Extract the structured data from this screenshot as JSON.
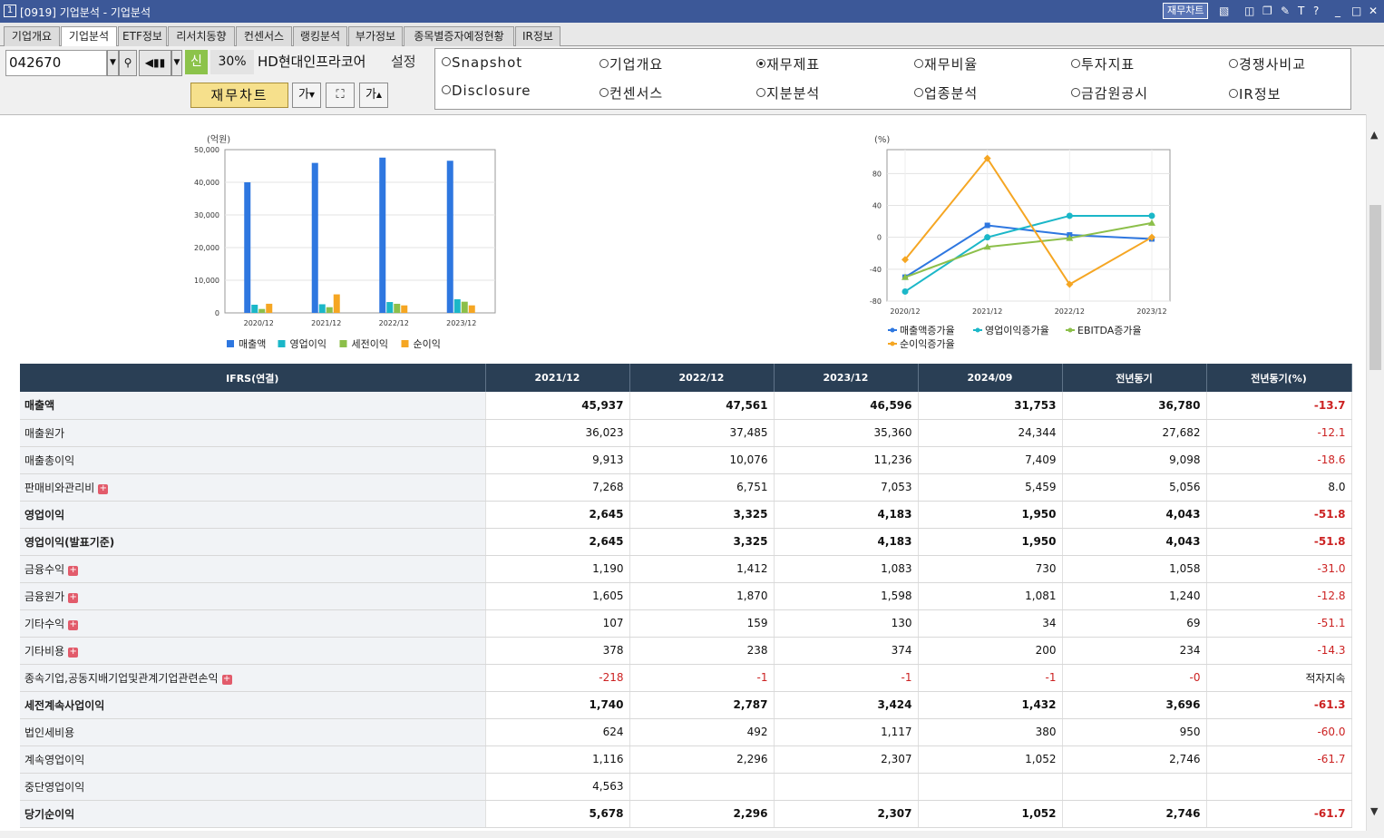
{
  "window": {
    "number": "1",
    "title": "[0919] 기업분석 - 기업분석",
    "chart_button": "재무차트",
    "icons": [
      "chart-icon",
      "layout-icon",
      "copy-icon",
      "pin-icon",
      "font-icon",
      "help-icon",
      "minimize-icon",
      "maximize-icon",
      "close-icon"
    ]
  },
  "tabs": [
    "기업개요",
    "기업분석",
    "ETF정보",
    "리서치동향",
    "컨센서스",
    "랭킹분석",
    "부가정보",
    "종목별증자예정현황",
    "IR정보"
  ],
  "active_tab": "기업분석",
  "toolbar": {
    "code": "042670",
    "shin_label": "신",
    "pct_label": "30%",
    "company_name": "HD현대인프라코어",
    "setting_label": "설정",
    "fin_chart_label": "재무차트",
    "font_down": "가",
    "font_up": "가"
  },
  "radio_options": [
    {
      "label": "Snapshot",
      "checked": false
    },
    {
      "label": "기업개요",
      "checked": false
    },
    {
      "label": "재무제표",
      "checked": true
    },
    {
      "label": "재무비율",
      "checked": false
    },
    {
      "label": "투자지표",
      "checked": false
    },
    {
      "label": "경쟁사비교",
      "checked": false
    },
    {
      "label": "Disclosure",
      "checked": false
    },
    {
      "label": "컨센서스",
      "checked": false
    },
    {
      "label": "지분분석",
      "checked": false
    },
    {
      "label": "업종분석",
      "checked": false
    },
    {
      "label": "금감원공시",
      "checked": false
    },
    {
      "label": "IR정보",
      "checked": false
    }
  ],
  "chart_data": [
    {
      "type": "bar",
      "unit_label": "(억원)",
      "categories": [
        "2020/12",
        "2021/12",
        "2022/12",
        "2023/12"
      ],
      "ylim": [
        0,
        50000
      ],
      "yticks": [
        "0",
        "10,000",
        "20,000",
        "30,000",
        "40,000",
        "50,000"
      ],
      "series": [
        {
          "name": "매출액",
          "color": "#2e77e0",
          "values": [
            40000,
            45937,
            47561,
            46596
          ]
        },
        {
          "name": "영업이익",
          "color": "#1bb7c8",
          "values": [
            2500,
            2645,
            3325,
            4183
          ]
        },
        {
          "name": "세전이익",
          "color": "#8cbf4a",
          "values": [
            1200,
            1740,
            2787,
            3424
          ]
        },
        {
          "name": "순이익",
          "color": "#f5a623",
          "values": [
            2800,
            5678,
            2296,
            2307
          ]
        }
      ]
    },
    {
      "type": "line",
      "unit_label": "(%)",
      "categories": [
        "2020/12",
        "2021/12",
        "2022/12",
        "2023/12"
      ],
      "ylim": [
        -80,
        110
      ],
      "yticks": [
        "80",
        "40",
        "0",
        "-40",
        "-80"
      ],
      "series": [
        {
          "name": "매출액증가율",
          "color": "#2e77e0",
          "marker": "square",
          "values": [
            -50,
            15,
            3,
            -2
          ]
        },
        {
          "name": "영업이익증가율",
          "color": "#1bb7c8",
          "marker": "circle",
          "values": [
            -68,
            0,
            27,
            27
          ]
        },
        {
          "name": "EBITDA증가율",
          "color": "#8cbf4a",
          "marker": "triangle",
          "values": [
            -50,
            -12,
            -1,
            18
          ]
        },
        {
          "name": "순이익증가율",
          "color": "#f5a623",
          "marker": "diamond",
          "values": [
            -28,
            99,
            -59,
            0
          ]
        }
      ]
    }
  ],
  "table": {
    "headers": [
      "IFRS(연결)",
      "2021/12",
      "2022/12",
      "2023/12",
      "2024/09",
      "전년동기",
      "전년동기(%)"
    ],
    "rows": [
      {
        "label": "매출액",
        "bold": true,
        "plus": false,
        "values": [
          "45,937",
          "47,561",
          "46,596",
          "31,753",
          "36,780"
        ],
        "pct": "-13.7",
        "neg_values": false,
        "pct_neg": true
      },
      {
        "label": "매출원가",
        "bold": false,
        "plus": false,
        "values": [
          "36,023",
          "37,485",
          "35,360",
          "24,344",
          "27,682"
        ],
        "pct": "-12.1",
        "neg_values": false,
        "pct_neg": true
      },
      {
        "label": "매출총이익",
        "bold": false,
        "plus": false,
        "values": [
          "9,913",
          "10,076",
          "11,236",
          "7,409",
          "9,098"
        ],
        "pct": "-18.6",
        "neg_values": false,
        "pct_neg": true
      },
      {
        "label": "판매비와관리비",
        "bold": false,
        "plus": true,
        "values": [
          "7,268",
          "6,751",
          "7,053",
          "5,459",
          "5,056"
        ],
        "pct": "8.0",
        "neg_values": false,
        "pct_neg": false
      },
      {
        "label": "영업이익",
        "bold": true,
        "plus": false,
        "values": [
          "2,645",
          "3,325",
          "4,183",
          "1,950",
          "4,043"
        ],
        "pct": "-51.8",
        "neg_values": false,
        "pct_neg": true
      },
      {
        "label": "영업이익(발표기준)",
        "bold": true,
        "plus": false,
        "values": [
          "2,645",
          "3,325",
          "4,183",
          "1,950",
          "4,043"
        ],
        "pct": "-51.8",
        "neg_values": false,
        "pct_neg": true
      },
      {
        "label": "금융수익",
        "bold": false,
        "plus": true,
        "values": [
          "1,190",
          "1,412",
          "1,083",
          "730",
          "1,058"
        ],
        "pct": "-31.0",
        "neg_values": false,
        "pct_neg": true
      },
      {
        "label": "금융원가",
        "bold": false,
        "plus": true,
        "values": [
          "1,605",
          "1,870",
          "1,598",
          "1,081",
          "1,240"
        ],
        "pct": "-12.8",
        "neg_values": false,
        "pct_neg": true
      },
      {
        "label": "기타수익",
        "bold": false,
        "plus": true,
        "values": [
          "107",
          "159",
          "130",
          "34",
          "69"
        ],
        "pct": "-51.1",
        "neg_values": false,
        "pct_neg": true
      },
      {
        "label": "기타비용",
        "bold": false,
        "plus": true,
        "values": [
          "378",
          "238",
          "374",
          "200",
          "234"
        ],
        "pct": "-14.3",
        "neg_values": false,
        "pct_neg": true
      },
      {
        "label": "종속기업,공동지배기업및관계기업관련손익",
        "bold": false,
        "plus": true,
        "values": [
          "-218",
          "-1",
          "-1",
          "-1",
          "-0"
        ],
        "pct": "적자지속",
        "neg_values": true,
        "pct_neg": false
      },
      {
        "label": "세전계속사업이익",
        "bold": true,
        "plus": false,
        "values": [
          "1,740",
          "2,787",
          "3,424",
          "1,432",
          "3,696"
        ],
        "pct": "-61.3",
        "neg_values": false,
        "pct_neg": true
      },
      {
        "label": "법인세비용",
        "bold": false,
        "plus": false,
        "values": [
          "624",
          "492",
          "1,117",
          "380",
          "950"
        ],
        "pct": "-60.0",
        "neg_values": false,
        "pct_neg": true
      },
      {
        "label": "계속영업이익",
        "bold": false,
        "plus": false,
        "values": [
          "1,116",
          "2,296",
          "2,307",
          "1,052",
          "2,746"
        ],
        "pct": "-61.7",
        "neg_values": false,
        "pct_neg": true
      },
      {
        "label": "중단영업이익",
        "bold": false,
        "plus": false,
        "values": [
          "4,563",
          "",
          "",
          "",
          ""
        ],
        "pct": "",
        "neg_values": false,
        "pct_neg": false
      },
      {
        "label": "당기순이익",
        "bold": true,
        "plus": false,
        "values": [
          "5,678",
          "2,296",
          "2,307",
          "1,052",
          "2,746"
        ],
        "pct": "-61.7",
        "neg_values": false,
        "pct_neg": true
      }
    ]
  }
}
